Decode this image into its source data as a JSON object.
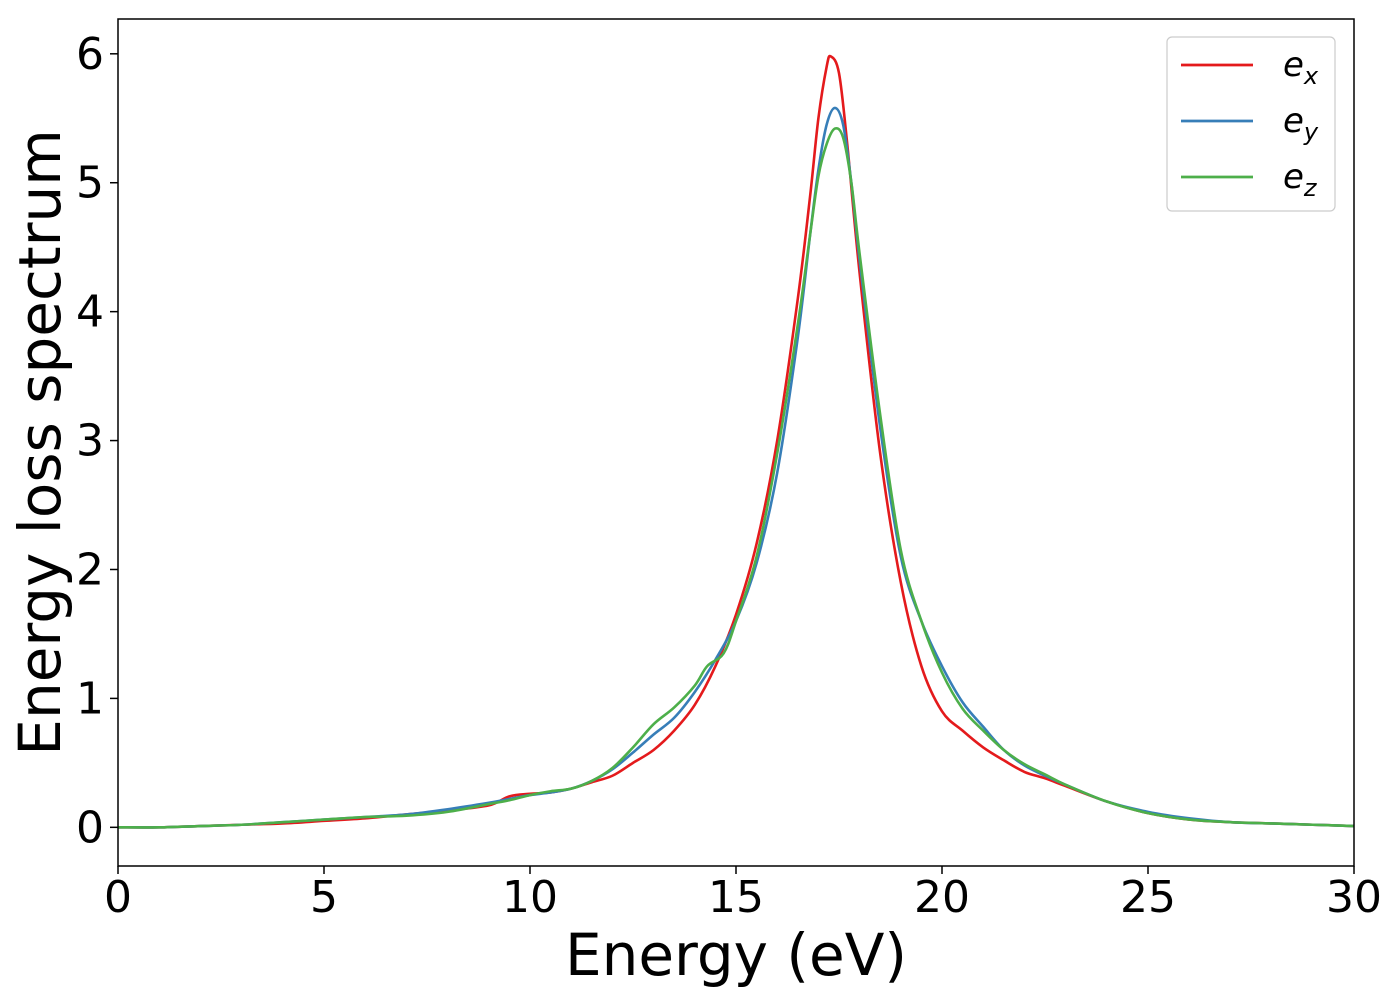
{
  "chart_data": {
    "type": "line",
    "title": "",
    "xlabel": "Energy (eV)",
    "ylabel": "Energy loss spectrum",
    "xlim": [
      0,
      30
    ],
    "ylim": [
      -0.3,
      6.27
    ],
    "xticks": [
      0,
      5,
      10,
      15,
      20,
      25,
      30
    ],
    "yticks": [
      0,
      1,
      2,
      3,
      4,
      5,
      6
    ],
    "grid": false,
    "legend_position": "top-right",
    "series": [
      {
        "name": "e_x",
        "label_base": "e",
        "label_sub": "x",
        "color": "#e41a1c",
        "x": [
          0,
          1,
          2,
          3,
          4,
          5,
          6,
          7,
          8,
          9,
          9.5,
          10,
          10.5,
          11,
          11.5,
          12,
          12.5,
          13,
          13.5,
          14,
          14.5,
          15,
          15.5,
          16,
          16.5,
          16.8,
          17,
          17.2,
          17.3,
          17.5,
          17.7,
          18,
          18.5,
          19,
          19.5,
          20,
          20.5,
          21,
          21.5,
          22,
          22.5,
          23,
          24,
          25,
          26,
          27,
          28,
          29,
          30
        ],
        "y": [
          0.0,
          0.0,
          0.01,
          0.02,
          0.03,
          0.05,
          0.07,
          0.1,
          0.13,
          0.17,
          0.24,
          0.26,
          0.27,
          0.3,
          0.35,
          0.4,
          0.5,
          0.6,
          0.75,
          0.95,
          1.25,
          1.65,
          2.2,
          3.0,
          4.1,
          4.9,
          5.5,
          5.9,
          5.98,
          5.85,
          5.3,
          4.3,
          2.9,
          1.9,
          1.25,
          0.9,
          0.75,
          0.62,
          0.52,
          0.43,
          0.38,
          0.32,
          0.2,
          0.11,
          0.06,
          0.04,
          0.03,
          0.02,
          0.01
        ]
      },
      {
        "name": "e_y",
        "label_base": "e",
        "label_sub": "y",
        "color": "#377eb8",
        "x": [
          0,
          1,
          2,
          3,
          4,
          5,
          6,
          7,
          8,
          9,
          9.5,
          10,
          10.5,
          11,
          11.5,
          12,
          12.5,
          13,
          13.5,
          14,
          14.5,
          15,
          15.5,
          16,
          16.5,
          16.8,
          17,
          17.2,
          17.4,
          17.6,
          17.8,
          18,
          18.5,
          19,
          19.5,
          20,
          20.5,
          21,
          21.5,
          22,
          22.5,
          23,
          24,
          25,
          26,
          27,
          28,
          29,
          30
        ],
        "y": [
          0.0,
          0.0,
          0.01,
          0.02,
          0.04,
          0.06,
          0.08,
          0.1,
          0.14,
          0.19,
          0.22,
          0.25,
          0.27,
          0.3,
          0.36,
          0.45,
          0.58,
          0.72,
          0.85,
          1.05,
          1.3,
          1.6,
          2.05,
          2.75,
          3.8,
          4.6,
          5.1,
          5.45,
          5.58,
          5.45,
          5.0,
          4.4,
          3.1,
          2.1,
          1.6,
          1.25,
          0.97,
          0.78,
          0.6,
          0.48,
          0.4,
          0.33,
          0.2,
          0.12,
          0.07,
          0.04,
          0.03,
          0.02,
          0.01
        ]
      },
      {
        "name": "e_z",
        "label_base": "e",
        "label_sub": "z",
        "color": "#4daf4a",
        "x": [
          0,
          1,
          2,
          3,
          4,
          5,
          6,
          7,
          8,
          9,
          9.5,
          10,
          10.5,
          11,
          11.5,
          12,
          12.5,
          13,
          13.5,
          14,
          14.3,
          14.7,
          15,
          15.5,
          16,
          16.5,
          16.8,
          17,
          17.2,
          17.4,
          17.6,
          17.8,
          18,
          18.5,
          19,
          19.5,
          20,
          20.5,
          21,
          21.5,
          22,
          22.5,
          23,
          24,
          25,
          26,
          27,
          28,
          29,
          30
        ],
        "y": [
          0.0,
          0.0,
          0.01,
          0.02,
          0.04,
          0.06,
          0.08,
          0.09,
          0.12,
          0.18,
          0.21,
          0.25,
          0.28,
          0.3,
          0.36,
          0.46,
          0.62,
          0.8,
          0.93,
          1.1,
          1.25,
          1.35,
          1.6,
          2.1,
          2.9,
          3.9,
          4.6,
          5.05,
          5.3,
          5.42,
          5.35,
          5.0,
          4.45,
          3.2,
          2.15,
          1.6,
          1.2,
          0.92,
          0.75,
          0.6,
          0.49,
          0.41,
          0.33,
          0.2,
          0.11,
          0.06,
          0.04,
          0.03,
          0.02,
          0.01
        ]
      }
    ]
  }
}
